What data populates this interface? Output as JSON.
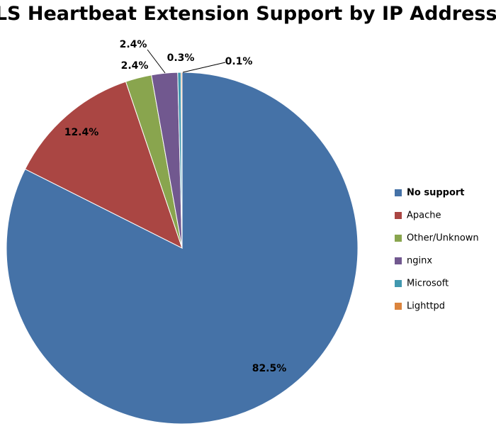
{
  "chart_data": {
    "type": "pie",
    "title": "TLS Heartbeat Extension Support by IP Address",
    "categories": [
      "No support",
      "Apache",
      "Other/Unknown",
      "nginx",
      "Microsoft",
      "Lighttpd"
    ],
    "values": [
      82.5,
      12.4,
      2.4,
      2.4,
      0.3,
      0.1
    ],
    "value_labels": [
      "82.5%",
      "12.4%",
      "2.4%",
      "2.4%",
      "0.3%",
      "0.1%"
    ],
    "colors": [
      "#4572a7",
      "#aa4643",
      "#89a54e",
      "#71588f",
      "#4198af",
      "#db843d"
    ],
    "legend": "right"
  }
}
